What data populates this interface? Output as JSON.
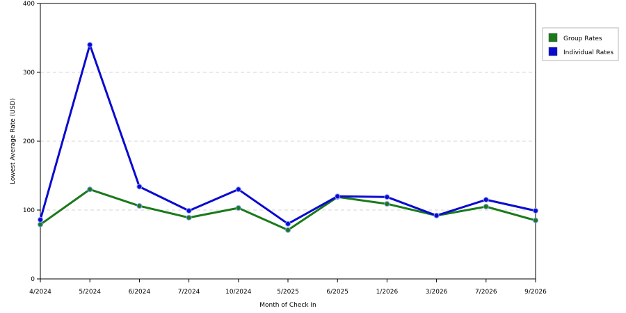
{
  "chart_data": {
    "type": "line",
    "title": "",
    "xlabel": "Month of Check In",
    "ylabel": "Lowest Average Rate (USD)",
    "categories": [
      "4/2024",
      "5/2024",
      "6/2024",
      "7/2024",
      "10/2024",
      "5/2025",
      "6/2025",
      "1/2026",
      "3/2026",
      "7/2026",
      "9/2026"
    ],
    "ylim": [
      0,
      400
    ],
    "yticks": [
      0,
      100,
      200,
      300,
      400
    ],
    "grid": true,
    "legend_position": "right",
    "series": [
      {
        "name": "Group Rates",
        "color": "#1a7a1a",
        "values": [
          79,
          130,
          106,
          89,
          103,
          71,
          119,
          109,
          92,
          105,
          85
        ]
      },
      {
        "name": "Individual Rates",
        "color": "#0a0ad0",
        "values": [
          86,
          340,
          134,
          99,
          130,
          80,
          120,
          119,
          92,
          115,
          99
        ]
      }
    ]
  }
}
